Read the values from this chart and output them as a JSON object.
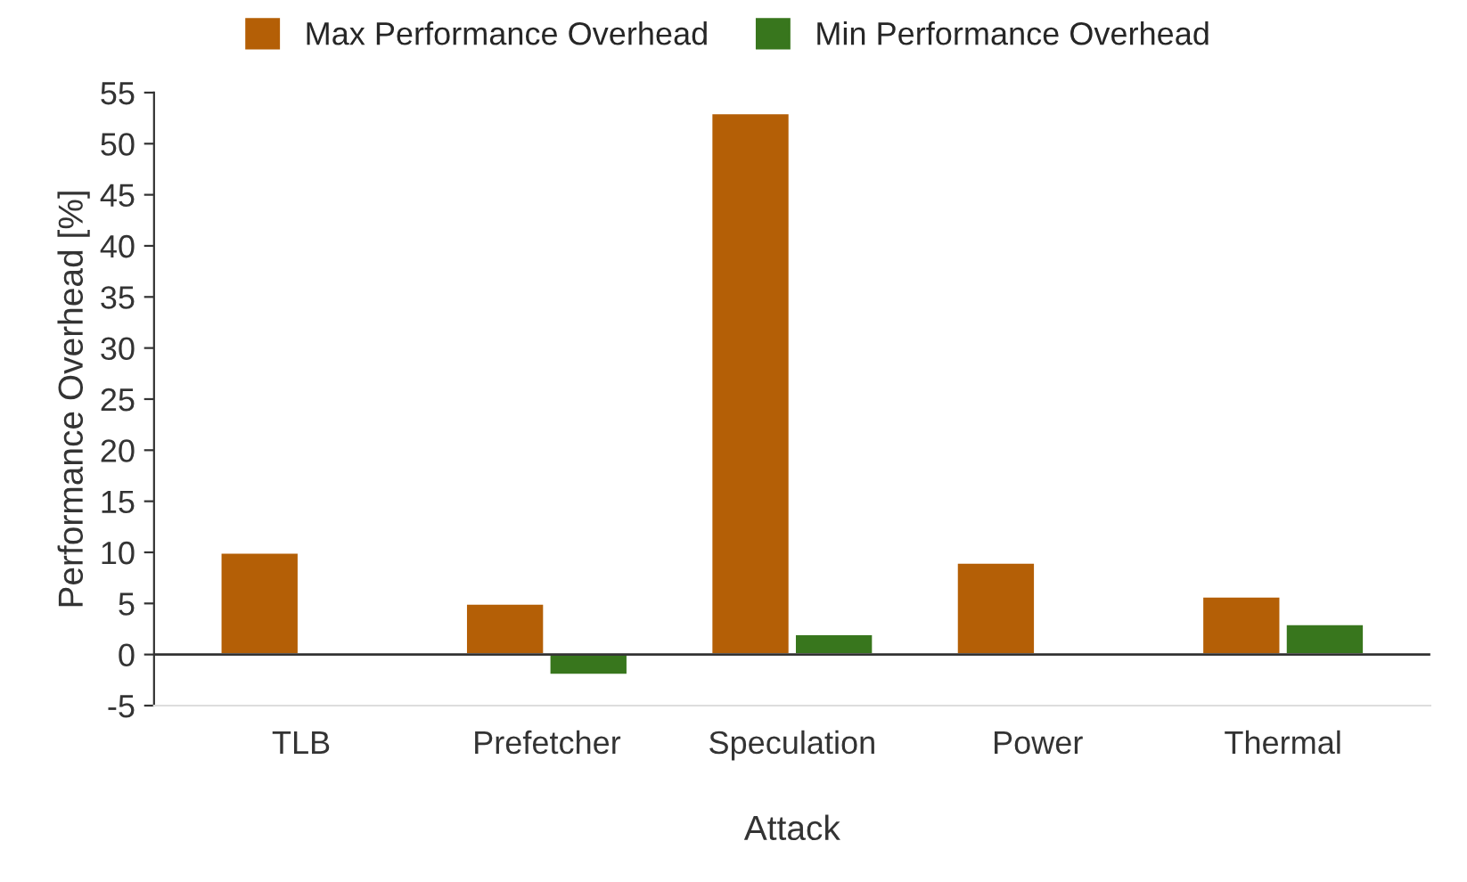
{
  "chart_data": {
    "type": "bar",
    "xlabel": "Attack",
    "ylabel": "Performance Overhead [%]",
    "categories": [
      "TLB",
      "Prefetcher",
      "Speculation",
      "Power",
      "Thermal"
    ],
    "series": [
      {
        "name": "Max Performance Overhead",
        "color": "#b45f06",
        "values": [
          10,
          5,
          53,
          9,
          5.7
        ]
      },
      {
        "name": "Min Performance Overhead",
        "color": "#38761d",
        "values": [
          0.1,
          -2,
          2,
          null,
          3
        ]
      }
    ],
    "ylim": [
      -5,
      55
    ],
    "yticks": [
      -5,
      0,
      5,
      10,
      15,
      20,
      25,
      30,
      35,
      40,
      45,
      50,
      55
    ],
    "ref_lines": [
      {
        "axis": "y",
        "value": 0,
        "color": "#333333"
      }
    ],
    "grid": false,
    "legend": "top"
  }
}
